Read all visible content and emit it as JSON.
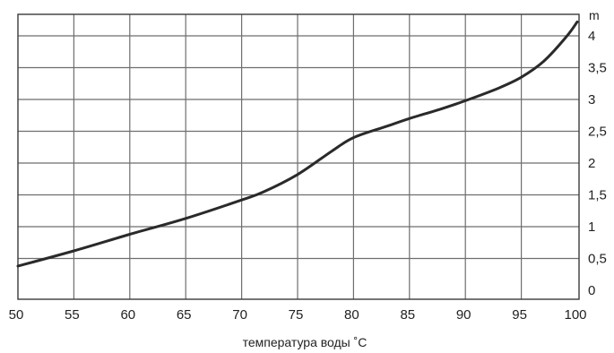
{
  "chart_data": {
    "type": "line",
    "title": "",
    "xlabel": "температура воды  ˚C",
    "ylabel": "m",
    "xlim": [
      50,
      100
    ],
    "ylim": [
      0,
      4.2
    ],
    "x_ticks": [
      "50",
      "55",
      "60",
      "65",
      "70",
      "75",
      "80",
      "85",
      "90",
      "95",
      "100"
    ],
    "y_ticks": [
      "0",
      "0,5",
      "1",
      "1,5",
      "2",
      "2,5",
      "3",
      "3,5",
      "4"
    ],
    "grid": true,
    "series": [
      {
        "x": [
          50,
          55,
          60,
          65,
          70,
          72,
          75,
          78,
          80,
          83,
          85,
          88,
          90,
          93,
          95,
          97,
          99,
          100
        ],
        "y": [
          0.38,
          0.62,
          0.88,
          1.13,
          1.42,
          1.55,
          1.82,
          2.18,
          2.4,
          2.58,
          2.7,
          2.86,
          2.98,
          3.18,
          3.35,
          3.6,
          3.98,
          4.22
        ]
      }
    ]
  }
}
